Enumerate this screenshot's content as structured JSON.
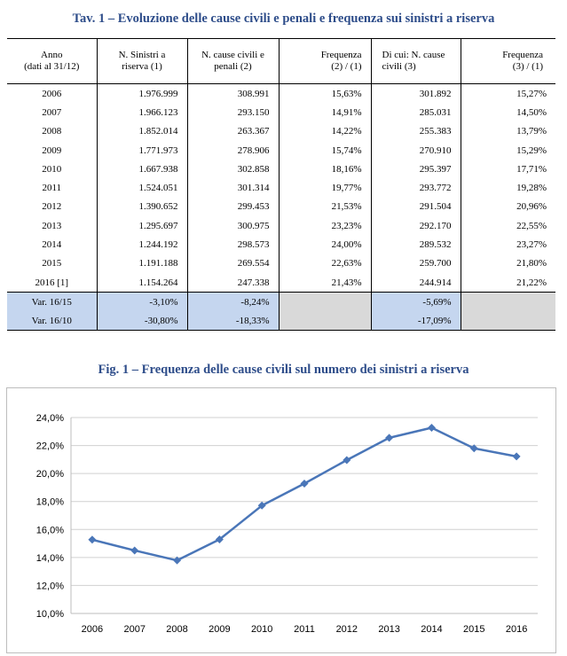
{
  "table": {
    "title": "Tav. 1 – Evoluzione delle cause civili e penali e frequenza sui sinistri a riserva",
    "headers": [
      [
        "Anno",
        "(dati al 31/12)"
      ],
      [
        "N. Sinistri a",
        "riserva (1)"
      ],
      [
        "N. cause civili e",
        "penali (2)"
      ],
      [
        "Frequenza",
        "(2) / (1)"
      ],
      [
        "Di cui: N. cause",
        "civili (3)"
      ],
      [
        "Frequenza",
        "(3) / (1)"
      ]
    ],
    "rows": [
      [
        "2006",
        "1.976.999",
        "308.991",
        "15,63%",
        "301.892",
        "15,27%"
      ],
      [
        "2007",
        "1.966.123",
        "293.150",
        "14,91%",
        "285.031",
        "14,50%"
      ],
      [
        "2008",
        "1.852.014",
        "263.367",
        "14,22%",
        "255.383",
        "13,79%"
      ],
      [
        "2009",
        "1.771.973",
        "278.906",
        "15,74%",
        "270.910",
        "15,29%"
      ],
      [
        "2010",
        "1.667.938",
        "302.858",
        "18,16%",
        "295.397",
        "17,71%"
      ],
      [
        "2011",
        "1.524.051",
        "301.314",
        "19,77%",
        "293.772",
        "19,28%"
      ],
      [
        "2012",
        "1.390.652",
        "299.453",
        "21,53%",
        "291.504",
        "20,96%"
      ],
      [
        "2013",
        "1.295.697",
        "300.975",
        "23,23%",
        "292.170",
        "22,55%"
      ],
      [
        "2014",
        "1.244.192",
        "298.573",
        "24,00%",
        "289.532",
        "23,27%"
      ],
      [
        "2015",
        "1.191.188",
        "269.554",
        "22,63%",
        "259.700",
        "21,80%"
      ],
      [
        "2016 [1]",
        "1.154.264",
        "247.338",
        "21,43%",
        "244.914",
        "21,22%"
      ]
    ],
    "variations": [
      [
        "Var. 16/15",
        "-3,10%",
        "-8,24%",
        "",
        "-5,69%",
        ""
      ],
      [
        "Var. 16/10",
        "-30,80%",
        "-18,33%",
        "",
        "-17,09%",
        ""
      ]
    ]
  },
  "chart_data": {
    "type": "line",
    "title": "Fig. 1 – Frequenza delle cause civili sul numero dei sinistri a riserva",
    "categories": [
      "2006",
      "2007",
      "2008",
      "2009",
      "2010",
      "2011",
      "2012",
      "2013",
      "2014",
      "2015",
      "2016"
    ],
    "series": [
      {
        "values": [
          15.27,
          14.5,
          13.79,
          15.29,
          17.71,
          19.28,
          20.96,
          22.55,
          23.27,
          21.8,
          21.22
        ]
      }
    ],
    "ylim": [
      10,
      24
    ],
    "yticks": [
      "10,0%",
      "12,0%",
      "14,0%",
      "16,0%",
      "18,0%",
      "20,0%",
      "22,0%",
      "24,0%"
    ],
    "grid": true,
    "line_color": "#4a76b8",
    "grid_color": "#d0d0d0"
  }
}
